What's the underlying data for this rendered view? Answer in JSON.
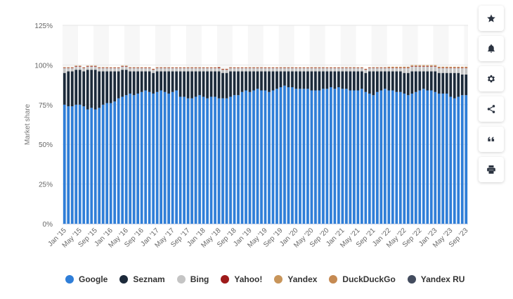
{
  "chart_data": {
    "type": "bar",
    "stacked": true,
    "ylabel": "Market share",
    "ylim": [
      0,
      125
    ],
    "yticks": [
      "0%",
      "25%",
      "50%",
      "75%",
      "100%",
      "125%"
    ],
    "ytick_values": [
      0,
      25,
      50,
      75,
      100,
      125
    ],
    "grid": true,
    "legend_position": "bottom",
    "x_tick_labels": [
      "Jan '15",
      "May '15",
      "Sep '15",
      "Jan '16",
      "May '16",
      "Sep '16",
      "Jan '17",
      "May '17",
      "Sep '17",
      "Jan '18",
      "May '18",
      "Sep '18",
      "Jan '19",
      "May '19",
      "Sep '19",
      "Jan '20",
      "May '20",
      "Sep '20",
      "Jan '21",
      "May '21",
      "Sep '21",
      "Jan '22",
      "May '22",
      "Sep '22",
      "Jan '23",
      "May '23",
      "Sep '23"
    ],
    "categories_count": 105,
    "series": [
      {
        "name": "Google",
        "color": "#2f7ed8",
        "values": [
          75,
          74,
          74,
          75,
          75,
          74,
          72,
          73,
          72,
          73,
          75,
          76,
          76,
          77,
          79,
          80,
          81,
          82,
          81,
          82,
          83,
          84,
          83,
          82,
          83,
          84,
          83,
          82,
          83,
          84,
          80,
          80,
          79,
          79,
          80,
          81,
          80,
          79,
          80,
          80,
          79,
          79,
          79,
          80,
          81,
          81,
          83,
          84,
          83,
          84,
          85,
          84,
          84,
          83,
          84,
          85,
          86,
          87,
          86,
          86,
          85,
          85,
          85,
          85,
          84,
          84,
          84,
          85,
          85,
          86,
          85,
          86,
          85,
          85,
          84,
          84,
          84,
          85,
          83,
          82,
          81,
          83,
          84,
          85,
          84,
          84,
          83,
          83,
          82,
          81,
          82,
          83,
          84,
          85,
          84,
          84,
          83,
          82,
          82,
          82,
          80,
          79,
          80,
          81,
          81
        ]
      },
      {
        "name": "Seznam",
        "color": "#1c2a3a",
        "values": [
          20,
          22,
          22,
          22,
          22,
          22,
          25,
          24,
          25,
          23,
          21,
          20,
          20,
          19,
          17,
          17,
          16,
          14,
          15,
          14,
          13,
          12,
          13,
          13,
          13,
          12,
          13,
          14,
          13,
          12,
          16,
          16,
          17,
          17,
          16,
          15,
          16,
          17,
          16,
          16,
          17,
          16,
          16,
          16,
          15,
          15,
          13,
          12,
          13,
          12,
          11,
          12,
          12,
          13,
          12,
          11,
          10,
          9,
          10,
          10,
          11,
          11,
          11,
          11,
          12,
          12,
          12,
          11,
          11,
          10,
          11,
          10,
          11,
          11,
          12,
          12,
          12,
          11,
          12,
          14,
          15,
          13,
          12,
          11,
          12,
          12,
          13,
          13,
          13,
          14,
          14,
          13,
          12,
          11,
          12,
          12,
          13,
          13,
          13,
          13,
          15,
          16,
          15,
          13,
          13
        ]
      },
      {
        "name": "Bing",
        "color": "#c4c4c4",
        "values": [
          3,
          2,
          2,
          2,
          2,
          2,
          2,
          2,
          2,
          2,
          2,
          2,
          2,
          2,
          2,
          2,
          2,
          2,
          2,
          2,
          2,
          2,
          2,
          2,
          2,
          2,
          2,
          2,
          2,
          2,
          2,
          2,
          2,
          2,
          2,
          2,
          2,
          2,
          2,
          2,
          2,
          2,
          2,
          2,
          2,
          2,
          2,
          2,
          2,
          2,
          2,
          2,
          2,
          2,
          2,
          2,
          2,
          2,
          2,
          2,
          2,
          2,
          2,
          2,
          2,
          2,
          2,
          2,
          2,
          2,
          2,
          2,
          2,
          2,
          2,
          2,
          2,
          2,
          2,
          2,
          2,
          2,
          2,
          2,
          2,
          2,
          2,
          2,
          3,
          3,
          3,
          3,
          3,
          3,
          3,
          3,
          3,
          3,
          3,
          3,
          3,
          3,
          3,
          4,
          4
        ]
      },
      {
        "name": "Yahoo!",
        "color": "#9e1a1a",
        "values": [
          0.3,
          0.3,
          0.3,
          0.3,
          0.3,
          0.3,
          0.3,
          0.3,
          0.3,
          0.3,
          0.3,
          0.3,
          0.3,
          0.3,
          0.3,
          0.3,
          0.3,
          0.3,
          0.3,
          0.3,
          0.3,
          0.3,
          0.3,
          0.3,
          0.3,
          0.3,
          0.3,
          0.3,
          0.3,
          0.3,
          0.3,
          0.3,
          0.3,
          0.3,
          0.3,
          0.3,
          0.3,
          0.3,
          0.3,
          0.3,
          0.5,
          0.3,
          0.3,
          0.3,
          0.3,
          0.3,
          0.3,
          0.3,
          0.3,
          0.3,
          0.3,
          0.3,
          0.3,
          0.3,
          0.3,
          0.3,
          0.3,
          0.3,
          0.3,
          0.3,
          0.3,
          0.3,
          0.3,
          0.3,
          0.3,
          0.3,
          0.3,
          0.3,
          0.3,
          0.3,
          0.3,
          0.3,
          0.3,
          0.3,
          0.3,
          0.3,
          0.3,
          0.3,
          0.3,
          0.3,
          0.3,
          0.3,
          0.3,
          0.3,
          0.3,
          0.3,
          0.3,
          0.3,
          0.3,
          0.3,
          0.3,
          0.3,
          0.3,
          0.3,
          0.3,
          0.3,
          0.3,
          0.3,
          0.3,
          0.3,
          0.3,
          0.3,
          0.3,
          0.3,
          0.3
        ]
      },
      {
        "name": "Yandex",
        "color": "#c8955a",
        "values": [
          0.3,
          0.3,
          0.3,
          0.3,
          0.3,
          0.3,
          0.3,
          0.3,
          0.3,
          0.3,
          0.3,
          0.3,
          0.3,
          0.3,
          0.3,
          0.3,
          0.3,
          0.3,
          0.3,
          0.3,
          0.3,
          0.3,
          0.3,
          0.3,
          0.3,
          0.3,
          0.3,
          0.3,
          0.3,
          0.3,
          0.3,
          0.3,
          0.3,
          0.3,
          0.3,
          0.3,
          0.3,
          0.3,
          0.3,
          0.3,
          0.3,
          0.3,
          0.3,
          0.3,
          0.3,
          0.3,
          0.3,
          0.3,
          0.3,
          0.3,
          0.3,
          0.3,
          0.3,
          0.3,
          0.3,
          0.3,
          0.3,
          0.3,
          0.3,
          0.3,
          0.3,
          0.3,
          0.3,
          0.3,
          0.3,
          0.3,
          0.3,
          0.3,
          0.3,
          0.3,
          0.3,
          0.3,
          0.3,
          0.3,
          0.3,
          0.3,
          0.3,
          0.3,
          0.3,
          0.3,
          0.3,
          0.3,
          0.3,
          0.3,
          0.3,
          0.3,
          0.3,
          0.3,
          0.3,
          0.3,
          0.3,
          0.3,
          0.3,
          0.3,
          0.3,
          0.3,
          0.3,
          0.3,
          0.3,
          0.3,
          0.3,
          0.3,
          0.3,
          0.3,
          0.3
        ]
      },
      {
        "name": "DuckDuckGo",
        "color": "#c58a52",
        "values": [
          0,
          0,
          0,
          0,
          0,
          0,
          0,
          0,
          0,
          0,
          0,
          0,
          0,
          0,
          0,
          0,
          0,
          0,
          0,
          0,
          0,
          0,
          0,
          0,
          0,
          0,
          0,
          0,
          0,
          0,
          0,
          0,
          0,
          0,
          0,
          0,
          0,
          0,
          0,
          0,
          0,
          0,
          0,
          0,
          0,
          0,
          0,
          0,
          0,
          0,
          0,
          0,
          0,
          0,
          0,
          0,
          0,
          0,
          0,
          0,
          0,
          0,
          0,
          0,
          0,
          0,
          0,
          0,
          0,
          0,
          0,
          0,
          0,
          0,
          0,
          0,
          0,
          0,
          0,
          0,
          0,
          0,
          0,
          0,
          0.3,
          0.3,
          0.3,
          0.3,
          0.3,
          0.3,
          0.3,
          0.3,
          0.3,
          0.3,
          0.3,
          0.3,
          0.3,
          0.3,
          0.3,
          0.3,
          0.3,
          0.3,
          0.3,
          0.3,
          0.3
        ]
      },
      {
        "name": "Yandex RU",
        "color": "#434c5e",
        "values": [
          0,
          0,
          0,
          0,
          0,
          0,
          0,
          0,
          0,
          0,
          0,
          0,
          0,
          0,
          0,
          0,
          0,
          0,
          0,
          0,
          0,
          0,
          0,
          0,
          0,
          0,
          0,
          0,
          0,
          0,
          0,
          0,
          0,
          0,
          0,
          0,
          0,
          0,
          0,
          0,
          0,
          0,
          0,
          0,
          0,
          0,
          0,
          0,
          0,
          0,
          0,
          0,
          0,
          0,
          0,
          0,
          0,
          0,
          0,
          0,
          0,
          0,
          0,
          0,
          0,
          0,
          0,
          0,
          0,
          0,
          0,
          0,
          0,
          0,
          0,
          0,
          0,
          0,
          0,
          0,
          0,
          0,
          0,
          0,
          0,
          0,
          0,
          0,
          0,
          0,
          0,
          0,
          0,
          0,
          0,
          0,
          0,
          0,
          0,
          0,
          0,
          0,
          0,
          0,
          0
        ]
      }
    ]
  },
  "toolbar": {
    "items": [
      {
        "name": "favorite-button",
        "icon": "star-icon"
      },
      {
        "name": "notification-button",
        "icon": "bell-icon"
      },
      {
        "name": "settings-button",
        "icon": "gear-icon"
      },
      {
        "name": "share-button",
        "icon": "share-icon"
      },
      {
        "name": "cite-button",
        "icon": "quote-icon"
      },
      {
        "name": "print-button",
        "icon": "print-icon"
      }
    ]
  }
}
